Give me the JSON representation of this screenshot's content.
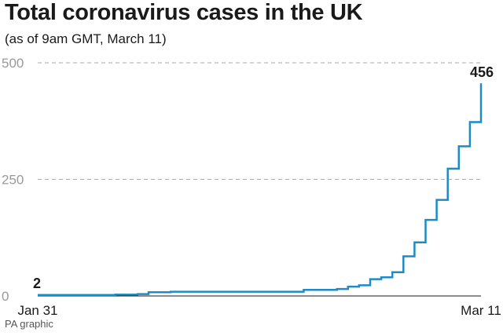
{
  "header": {
    "title": "Total coronavirus cases in the UK",
    "subtitle": "(as of 9am GMT, March 11)"
  },
  "footer": {
    "source": "PA graphic"
  },
  "chart_data": {
    "type": "line",
    "step": true,
    "title": "Total coronavirus cases in the UK",
    "subtitle": "(as of 9am GMT, March 11)",
    "xlabel": "",
    "ylabel": "",
    "x": [
      "2020-01-31",
      "2020-02-01",
      "2020-02-02",
      "2020-02-03",
      "2020-02-04",
      "2020-02-05",
      "2020-02-06",
      "2020-02-07",
      "2020-02-08",
      "2020-02-09",
      "2020-02-10",
      "2020-02-11",
      "2020-02-12",
      "2020-02-13",
      "2020-02-14",
      "2020-02-15",
      "2020-02-16",
      "2020-02-17",
      "2020-02-18",
      "2020-02-19",
      "2020-02-20",
      "2020-02-21",
      "2020-02-22",
      "2020-02-23",
      "2020-02-24",
      "2020-02-25",
      "2020-02-26",
      "2020-02-27",
      "2020-02-28",
      "2020-02-29",
      "2020-03-01",
      "2020-03-02",
      "2020-03-03",
      "2020-03-04",
      "2020-03-05",
      "2020-03-06",
      "2020-03-07",
      "2020-03-08",
      "2020-03-09",
      "2020-03-10",
      "2020-03-11"
    ],
    "y": [
      2,
      2,
      2,
      2,
      2,
      2,
      2,
      3,
      3,
      4,
      8,
      8,
      9,
      9,
      9,
      9,
      9,
      9,
      9,
      9,
      9,
      9,
      9,
      9,
      13,
      13,
      13,
      15,
      20,
      23,
      36,
      40,
      51,
      85,
      115,
      163,
      206,
      273,
      321,
      373,
      456
    ],
    "x_tick_labels": [
      "Jan 31",
      "Mar 11"
    ],
    "y_ticks": [
      0,
      250,
      500
    ],
    "ylim": [
      0,
      500
    ],
    "grid": true,
    "color": "#1f8bc2",
    "annotations": [
      {
        "at": "start",
        "text": "2"
      },
      {
        "at": "end",
        "text": "456"
      }
    ]
  }
}
